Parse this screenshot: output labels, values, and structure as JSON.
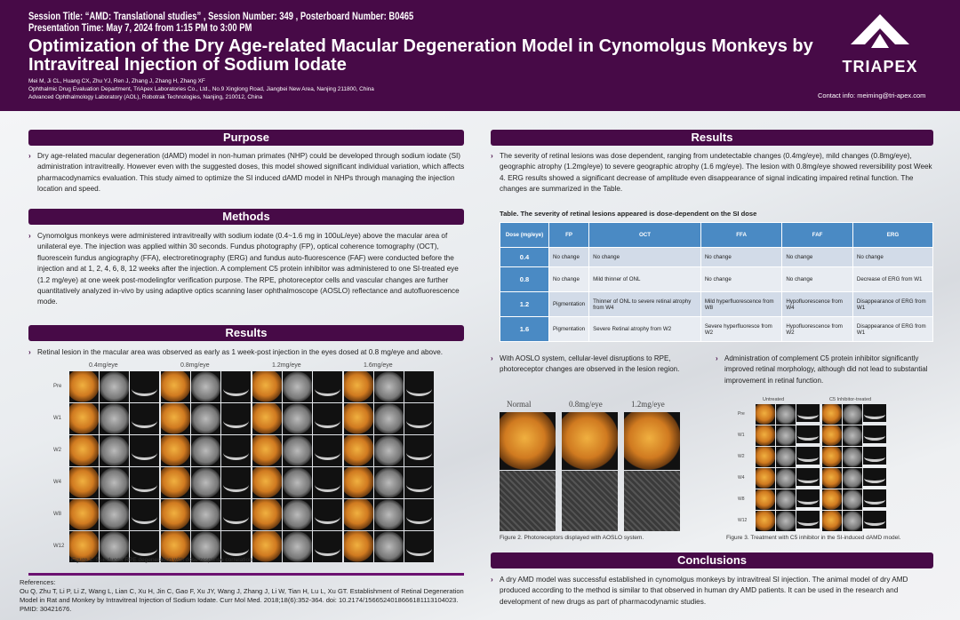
{
  "header": {
    "session": "Session Title: “AMD: Translational studies” , Session Number: 349 , Posterboard Number: B0465",
    "time": "Presentation Time: May 7, 2024 from 1:15 PM to 3:00 PM",
    "title": "Optimization of the Dry Age-related Macular Degeneration Model in Cynomolgus Monkeys by Intravitreal Injection of Sodium Iodate",
    "authors": "Mei M, Ji CL, Huang CX, Zhu YJ, Ren J, Zhang J, Zhang H, Zhang XF",
    "aff1": "Ophthalmic Drug Evaluation Department, TriApex Laboratories Co., Ltd., No.9 Xinglong Road, Jiangbei New Area, Nanjing 211800, China",
    "aff2": "Advanced Ophthalmology Laboratory (AOL), Robotrak Technologies, Nanjing, 210012, China",
    "logo": "TRIAPEX",
    "contact": "Contact info: meiming@tri-apex.com"
  },
  "purpose": {
    "title": "Purpose",
    "text": "Dry age-related macular degeneration (dAMD) model in non-human primates (NHP) could be developed through sodium iodate (SI) administration intravitreally. However even with the suggested doses, this model showed significant individual variation, which affects pharmacodynamics evaluation. This study aimed to optimize the SI induced dAMD model in NHPs through managing the injection location and speed."
  },
  "methods": {
    "title": "Methods",
    "text": "Cynomolgus monkeys were administered intravitreally with sodium iodate (0.4~1.6 mg in 100uL/eye) above the macular area of unilateral eye. The injection was applied within 30 seconds. Fundus photography (FP), optical coherence tomography (OCT), fluorescein fundus angiography (FFA), electroretinography (ERG) and fundus auto-fluorescence (FAF) were conducted before the injection and at 1, 2, 4, 6, 8, 12 weeks after the injection. A complement C5 protein inhibitor was administered to one SI-treated eye (1.2 mg/eye) at one week post-modelingfor verification purpose. The RPE, photoreceptor cells and vascular changes are further quantitatively analyzed in-vivo by using adaptive optics scanning laser ophthalmoscope (AOSLO) reflectance and autofluorescence mode."
  },
  "results_left": {
    "title": "Results",
    "text": "Retinal lesion in the macular area was observed as early as 1 week-post injection in the eyes dosed at 0.8 mg/eye and above.",
    "fig1_cols": [
      "0.4mg/eye",
      "0.8mg/eye",
      "1.2mg/eye",
      "1.6mg/eye"
    ],
    "fig1_rows": [
      "Pre",
      "W1",
      "W2",
      "W4",
      "W8",
      "W12"
    ],
    "fig1_caption": "Figure 1. SI-induced RPE degeneration with dose-response correlation."
  },
  "references": {
    "title": "References:",
    "text": "Ou Q, Zhu T, Li P, Li Z, Wang L, Lian C, Xu H, Jin C, Gao F, Xu JY, Wang J, Zhang J, Li W, Tian H, Lu L, Xu GT. Establishment of Retinal Degeneration Model in Rat and Monkey by Intravitreal Injection of Sodium Iodate. Curr Mol Med. 2018;18(6):352-364. doi: 10.2174/1566524018666181113104023. PMID: 30421676."
  },
  "results_right": {
    "title": "Results",
    "text": "The severity of retinal lesions was dose dependent, ranging from undetectable changes (0.4mg/eye), mild changes (0.8mg/eye), geographic atrophy (1.2mg/eye) to severe geographic atrophy (1.6 mg/eye). The lesion with 0.8mg/eye showed reversibility post Week 4. ERG results showed a significant decrease of amplitude even disappearance of signal indicating impaired retinal function. The changes are summarized in the Table.",
    "table_title": "Table. The severity of retinal lesions appeared is dose-dependent on the SI dose",
    "table": {
      "headers": [
        "Dose (mg/eye)",
        "FP",
        "OCT",
        "FFA",
        "FAF",
        "ERG"
      ],
      "rows": [
        [
          "0.4",
          "No change",
          "No change",
          "No change",
          "No change",
          "No change"
        ],
        [
          "0.8",
          "No change",
          "Mild thinner of ONL",
          "No change",
          "No change",
          "Decrease of ERG from W1"
        ],
        [
          "1.2",
          "Pigmentation",
          "Thinner of ONL to severe retinal atrophy from W4",
          "Mild hyperfluorescence from W8",
          "Hypofluorescence from W4",
          "Disappearance of ERG from W1"
        ],
        [
          "1.6",
          "Pigmentation",
          "Severe Retinal atrophy from W2",
          "Severe hyperfluoresce from W2",
          "Hypofluorescence from W2",
          "Disappearance of ERG from W1"
        ]
      ]
    },
    "bullet2": "With AOSLO system, cellular-level disruptions to RPE, photoreceptor changes are observed in the lesion region.",
    "bullet3": "Administration of complement C5 protein inhibitor significantly improved retinal morphology, although did not lead to substantial improvement in retinal function.",
    "fig2_cols": [
      "Normal",
      "0.8mg/eye",
      "1.2mg/eye"
    ],
    "fig2_caption": "Figure 2. Photoreceptors displayed with AOSLO system.",
    "fig3_cols": [
      "Untreated",
      "C5 Inhibitor-treated"
    ],
    "fig3_rows": [
      "Pre",
      "W1",
      "W2",
      "W4",
      "W8",
      "W12"
    ],
    "fig3_caption": "Figure 3. Treatment with C5 inhibitor in the SI-induced dAMD model."
  },
  "conclusions": {
    "title": "Conclusions",
    "text": "A dry AMD model was successful established in cynomolgus monkeys by intravitreal SI injection. The animal model of dry AMD produced according to the method is similar to that observed in human dry AMD patients. It can be used in the research and development of new drugs as part of pharmacodynamic studies."
  }
}
